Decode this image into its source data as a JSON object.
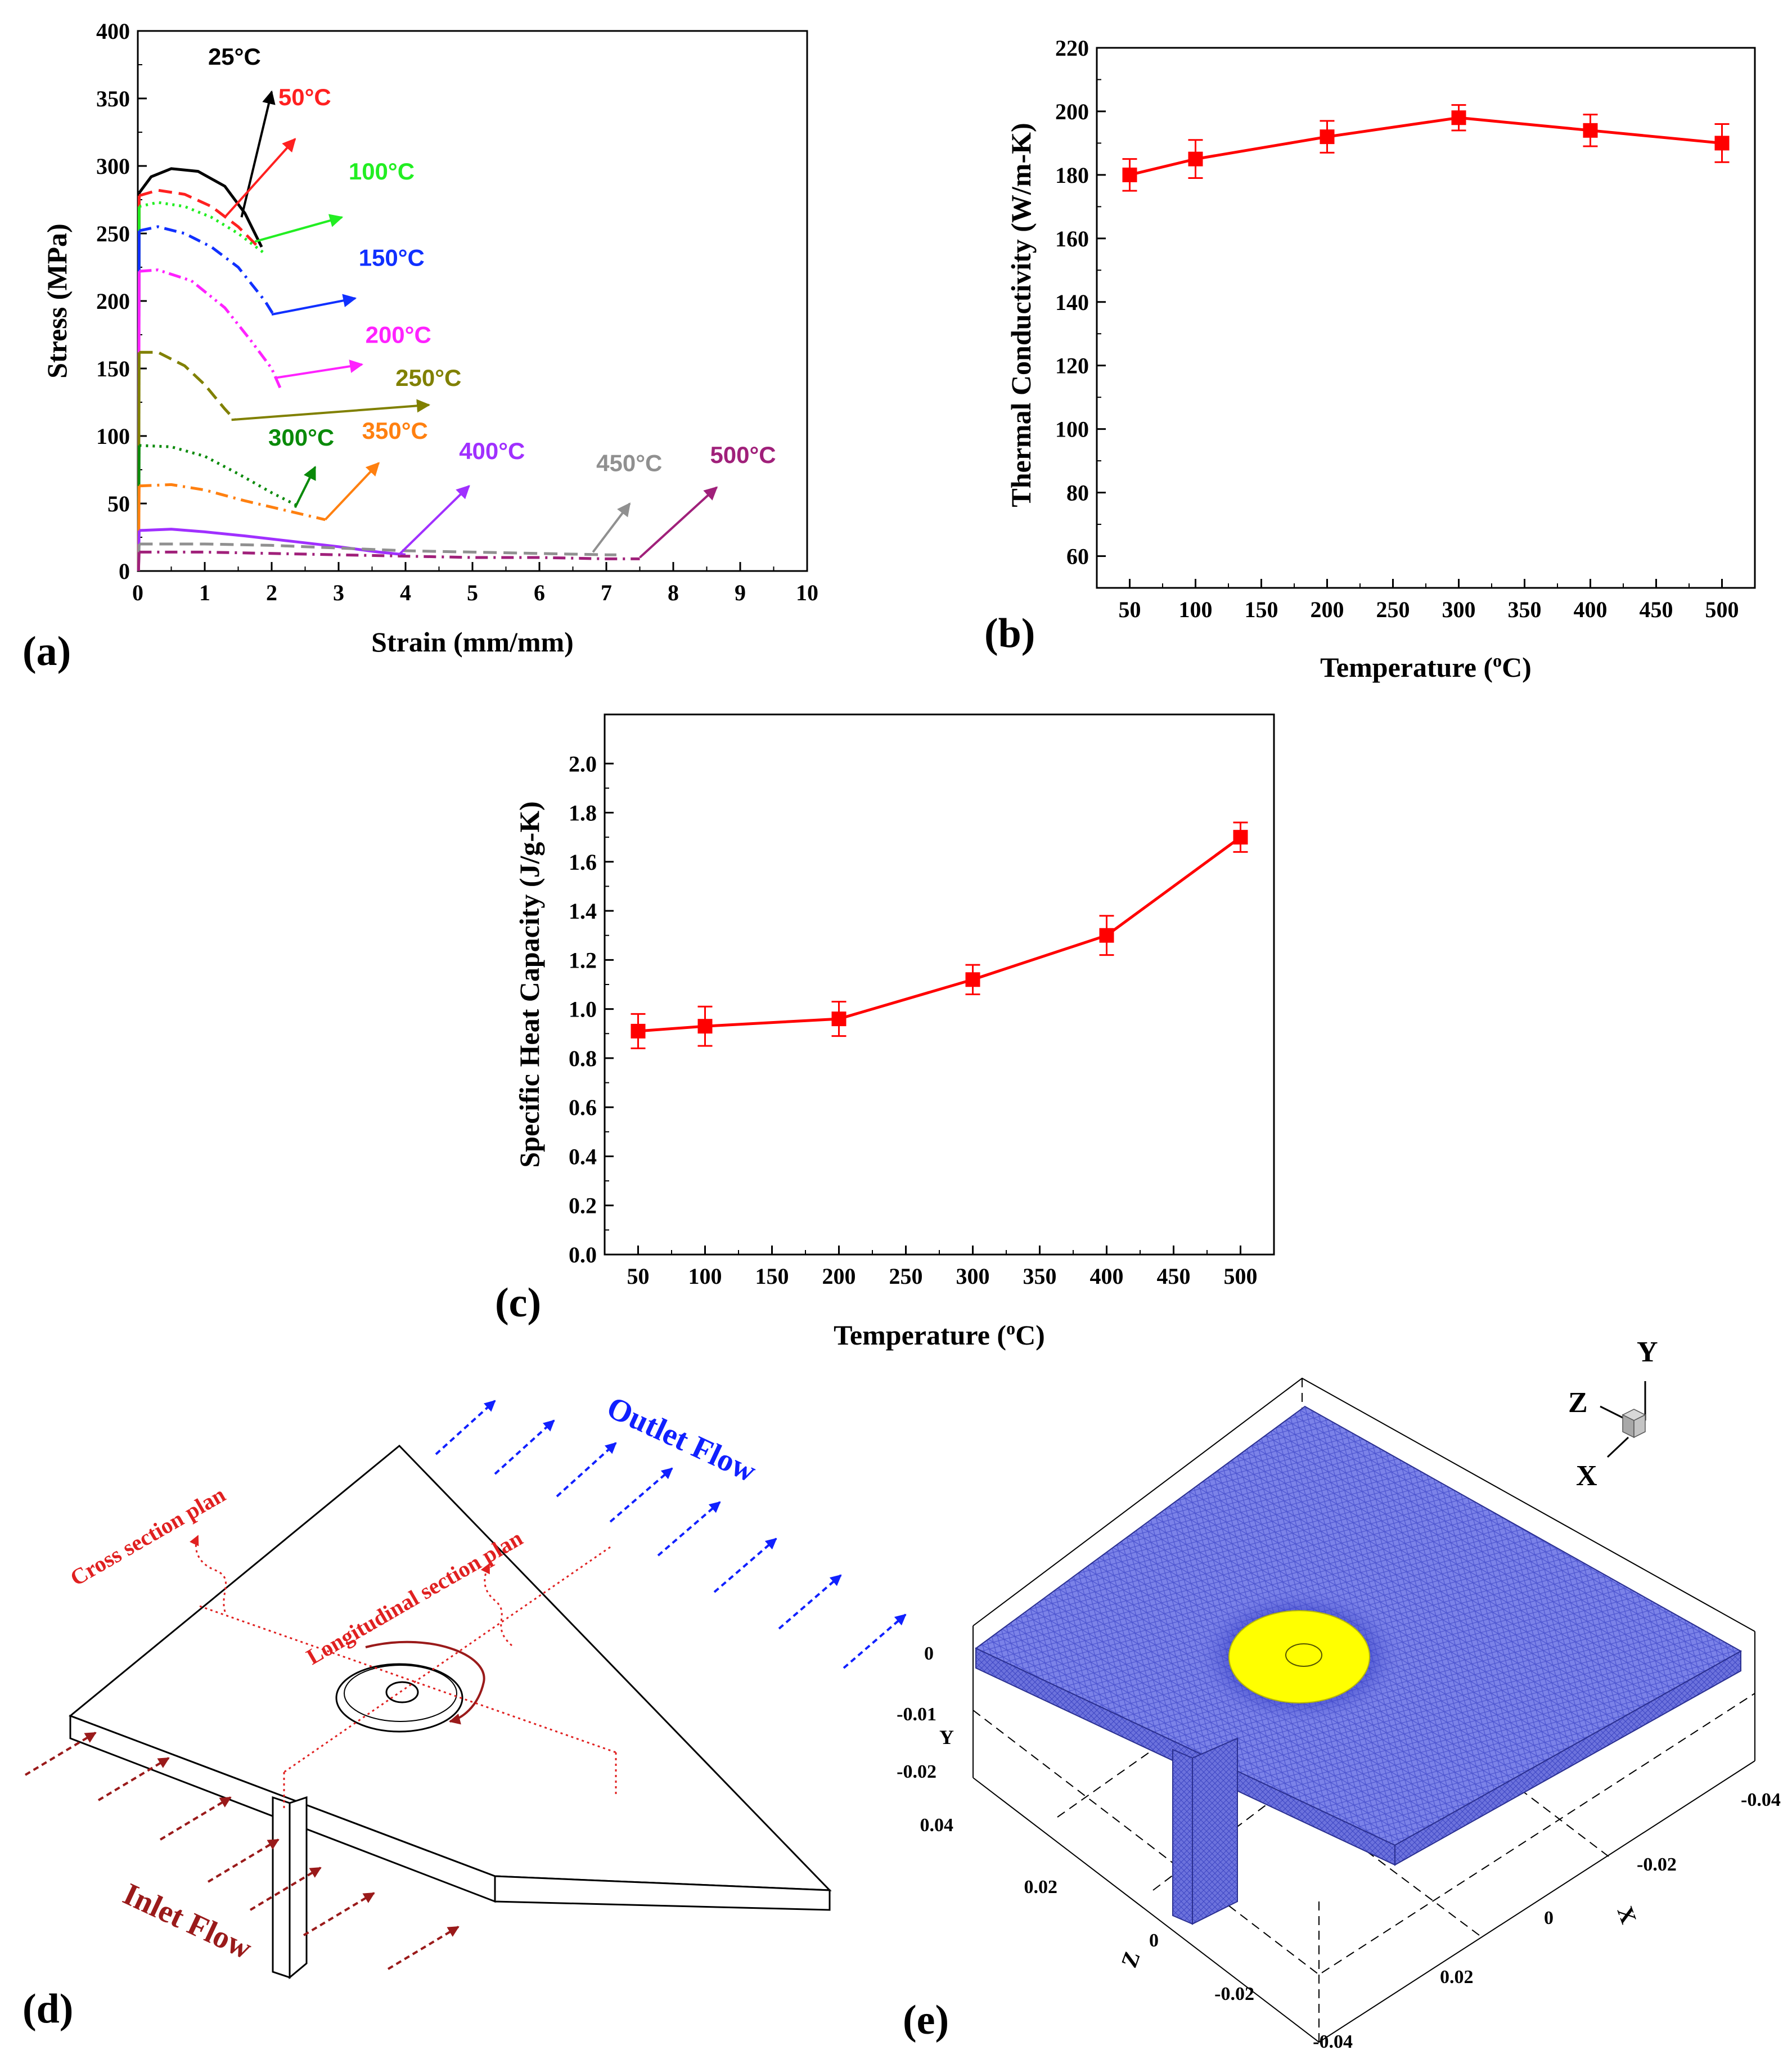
{
  "panels": {
    "a": "(a)",
    "b": "(b)",
    "c": "(c)",
    "d": "(d)",
    "e": "(e)"
  },
  "chart_data": [
    {
      "id": "a",
      "type": "line",
      "xlabel": "Strain (mm/mm)",
      "ylabel": "Stress (MPa)",
      "xlim": [
        0,
        10
      ],
      "ylim": [
        0,
        400
      ],
      "xticks": [
        0,
        1,
        2,
        3,
        4,
        5,
        6,
        7,
        8,
        9,
        10
      ],
      "yticks": [
        0,
        50,
        100,
        150,
        200,
        250,
        300,
        350,
        400
      ],
      "series": [
        {
          "name": "25°C",
          "color": "#000000",
          "dash": "solid",
          "x": [
            0.02,
            0.2,
            0.5,
            0.9,
            1.3,
            1.6,
            1.85
          ],
          "y": [
            280,
            292,
            298,
            296,
            285,
            265,
            240
          ]
        },
        {
          "name": "50°C",
          "color": "#ff2020",
          "dash": "long",
          "x": [
            0.02,
            0.3,
            0.7,
            1.1,
            1.5,
            1.8
          ],
          "y": [
            278,
            282,
            279,
            270,
            255,
            240
          ]
        },
        {
          "name": "100°C",
          "color": "#22ee22",
          "dash": "dot",
          "x": [
            0.02,
            0.3,
            0.7,
            1.1,
            1.5,
            1.9
          ],
          "y": [
            270,
            273,
            270,
            262,
            250,
            235
          ]
        },
        {
          "name": "150°C",
          "color": "#1030ff",
          "dash": "dashdot",
          "x": [
            0.02,
            0.3,
            0.7,
            1.1,
            1.5,
            1.9,
            2.05
          ],
          "y": [
            252,
            255,
            250,
            240,
            225,
            200,
            188
          ]
        },
        {
          "name": "200°C",
          "color": "#ff22ff",
          "dash": "dashdotdot",
          "x": [
            0.02,
            0.3,
            0.8,
            1.3,
            1.7,
            2.0,
            2.15
          ],
          "y": [
            222,
            223,
            215,
            195,
            170,
            150,
            133
          ]
        },
        {
          "name": "250°C",
          "color": "#808000",
          "dash": "long",
          "x": [
            0.02,
            0.3,
            0.7,
            1.0,
            1.3,
            1.45
          ],
          "y": [
            162,
            162,
            152,
            138,
            120,
            112
          ]
        },
        {
          "name": "300°C",
          "color": "#0a8a0a",
          "dash": "dot",
          "x": [
            0.02,
            0.5,
            1.0,
            1.5,
            2.0,
            2.4
          ],
          "y": [
            93,
            92,
            85,
            72,
            58,
            48
          ]
        },
        {
          "name": "350°C",
          "color": "#ff8010",
          "dash": "dashdot",
          "x": [
            0.02,
            0.5,
            1.0,
            1.6,
            2.2,
            2.8
          ],
          "y": [
            63,
            64,
            60,
            52,
            45,
            38
          ]
        },
        {
          "name": "400°C",
          "color": "#a030ff",
          "dash": "solid",
          "x": [
            0.02,
            0.5,
            1.0,
            1.6,
            2.3,
            3.0,
            3.6,
            4.0
          ],
          "y": [
            30,
            31,
            29,
            26,
            22,
            18,
            14,
            12
          ]
        },
        {
          "name": "450°C",
          "color": "#909090",
          "dash": "long",
          "x": [
            0.02,
            1.0,
            2.0,
            3.0,
            4.0,
            5.0,
            6.0,
            7.0,
            7.15
          ],
          "y": [
            20,
            20,
            19,
            17,
            15,
            14,
            13,
            12,
            12
          ]
        },
        {
          "name": "500°C",
          "color": "#a0207a",
          "dash": "dashdot",
          "x": [
            0.02,
            1.0,
            2.0,
            3.0,
            4.0,
            5.0,
            6.0,
            7.0,
            7.5
          ],
          "y": [
            14,
            14,
            13,
            12,
            11,
            10,
            10,
            9,
            9
          ]
        }
      ]
    },
    {
      "id": "b",
      "type": "line",
      "xlabel": "Temperature (°C)",
      "ylabel": "Thermal Conductivity (W/m-K)",
      "xlim": [
        25,
        525
      ],
      "ylim": [
        50,
        220
      ],
      "xticks": [
        50,
        100,
        150,
        200,
        250,
        300,
        350,
        400,
        450,
        500
      ],
      "yticks": [
        60,
        80,
        100,
        120,
        140,
        160,
        180,
        200,
        220
      ],
      "color": "#ff0000",
      "x": [
        50,
        100,
        200,
        300,
        400,
        500
      ],
      "y": [
        180,
        185,
        192,
        198,
        194,
        190
      ],
      "err": [
        5,
        6,
        5,
        4,
        5,
        6
      ]
    },
    {
      "id": "c",
      "type": "line",
      "xlabel": "Temperature (°C)",
      "ylabel": "Specific Heat Capacity (J/g-K)",
      "xlim": [
        25,
        525
      ],
      "ylim": [
        0,
        2.2
      ],
      "xticks": [
        50,
        100,
        150,
        200,
        250,
        300,
        350,
        400,
        450,
        500
      ],
      "yticks": [
        0.0,
        0.2,
        0.4,
        0.6,
        0.8,
        1.0,
        1.2,
        1.4,
        1.6,
        1.8,
        2.0
      ],
      "color": "#ff0000",
      "x": [
        50,
        100,
        200,
        300,
        400,
        500
      ],
      "y": [
        0.91,
        0.93,
        0.96,
        1.12,
        1.3,
        1.7
      ],
      "err": [
        0.07,
        0.08,
        0.07,
        0.06,
        0.08,
        0.06
      ]
    }
  ],
  "diagram_d": {
    "outlet": "Outlet Flow",
    "inlet": "Inlet Flow",
    "cross": "Cross section plan",
    "longitudinal": "Longitudinal section plan"
  },
  "mesh_e": {
    "axes": {
      "y": "Y",
      "z": "Z",
      "x": "X"
    },
    "y_ticks": [
      "0",
      "-0.01",
      "-0.02"
    ],
    "z_ticks": [
      "0.04",
      "0.02",
      "0",
      "-0.02",
      "-0.04"
    ],
    "x_ticks": [
      "-0.04",
      "-0.02",
      "0",
      "0.02"
    ],
    "triad": {
      "y": "Y",
      "z": "Z",
      "x": "X"
    }
  }
}
